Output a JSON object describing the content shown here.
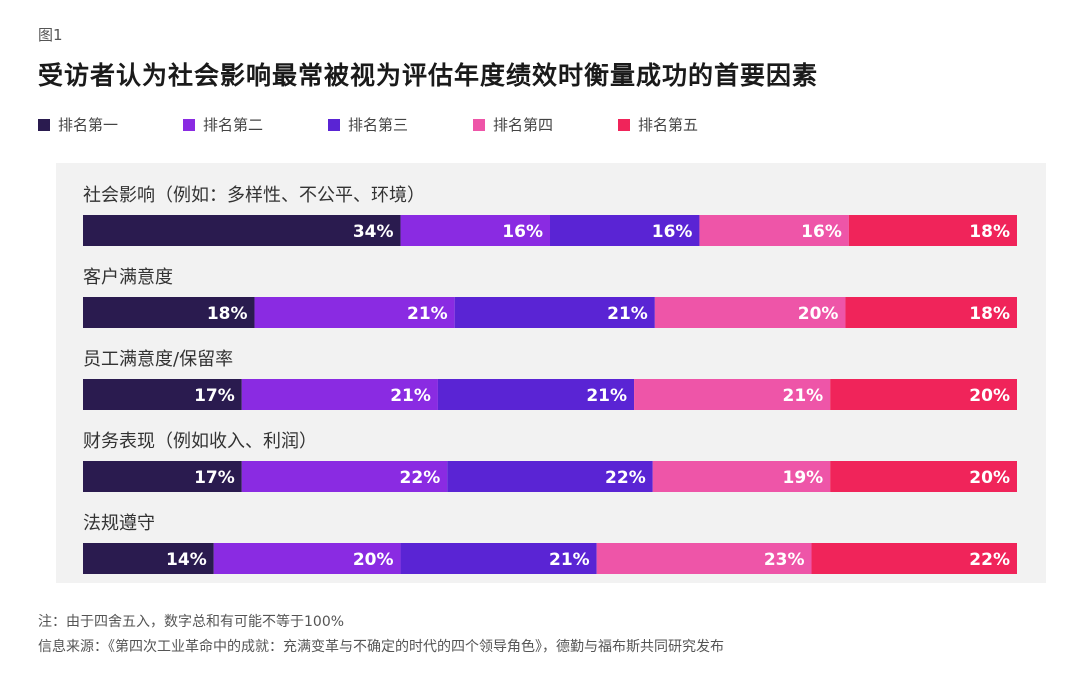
{
  "figure_label": "图1",
  "title": "受访者认为社会影响最常被视为评估年度绩效时衡量成功的首要因素",
  "legend": [
    {
      "label": "排名第一",
      "color": "#2a1b4f"
    },
    {
      "label": "排名第二",
      "color": "#8a2be2"
    },
    {
      "label": "排名第三",
      "color": "#5a24d4"
    },
    {
      "label": "排名第四",
      "color": "#ee55a8"
    },
    {
      "label": "排名第五",
      "color": "#f0245a"
    }
  ],
  "chart_data": {
    "type": "bar",
    "orientation": "horizontal-stacked-100",
    "categories": [
      "社会影响（例如：多样性、不公平、环境）",
      "客户满意度",
      "员工满意度/保留率",
      "财务表现（例如收入、利润）",
      "法规遵守"
    ],
    "series": [
      {
        "name": "排名第一",
        "values": [
          34,
          18,
          17,
          17,
          14
        ]
      },
      {
        "name": "排名第二",
        "values": [
          16,
          21,
          21,
          22,
          20
        ]
      },
      {
        "name": "排名第三",
        "values": [
          16,
          21,
          21,
          22,
          21
        ]
      },
      {
        "name": "排名第四",
        "values": [
          16,
          20,
          21,
          19,
          23
        ]
      },
      {
        "name": "排名第五",
        "values": [
          18,
          18,
          20,
          20,
          22
        ]
      }
    ],
    "value_suffix": "%",
    "legend_position": "top-left",
    "grid": false
  },
  "notes": [
    "注：由于四舍五入，数字总和有可能不等于100%",
    "信息来源：《第四次工业革命中的成就：充满变革与不确定的时代的四个领导角色》，德勤与福布斯共同研究发布"
  ]
}
